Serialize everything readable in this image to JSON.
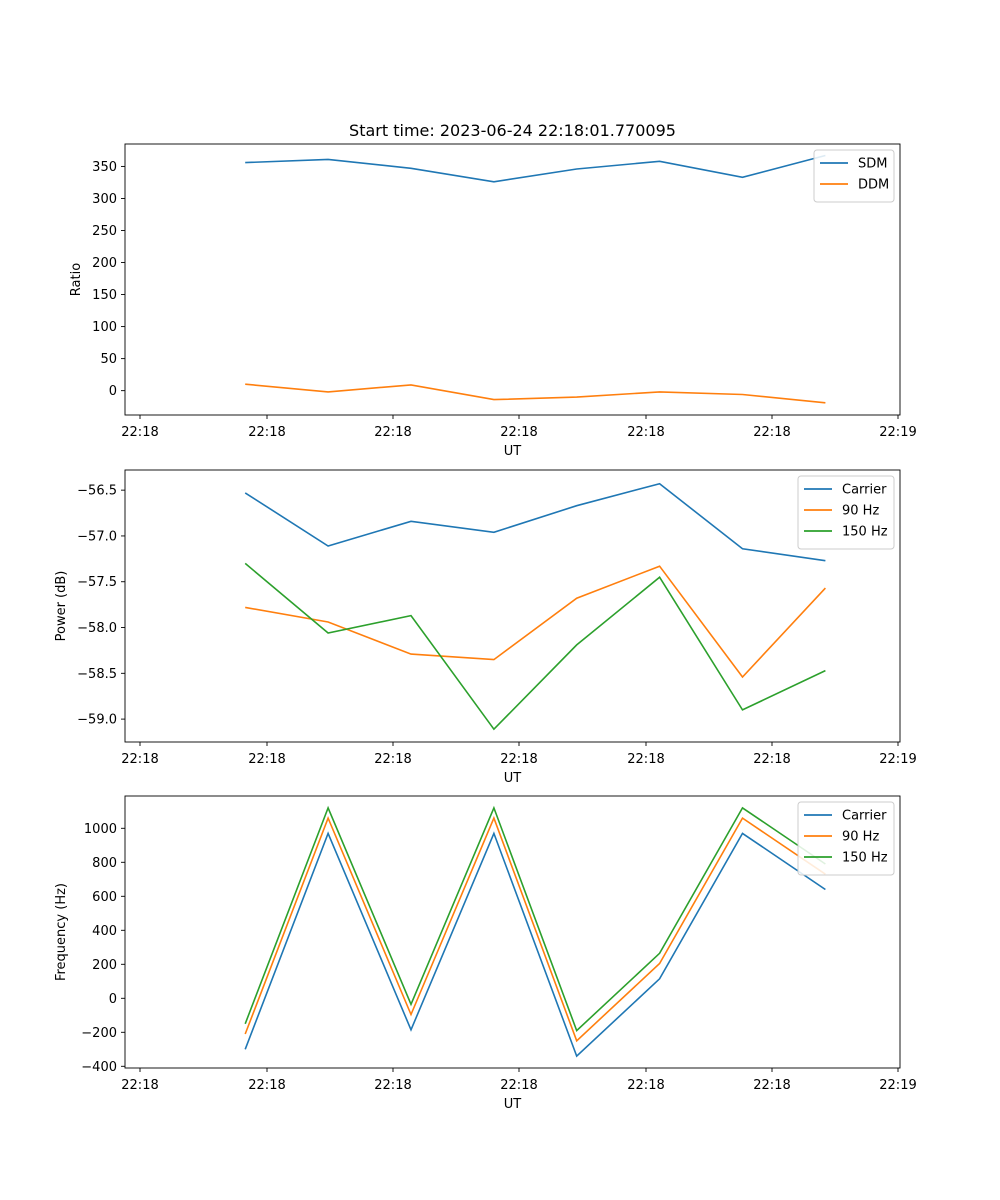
{
  "figure": {
    "title": "Start time: 2023-06-24 22:18:01.770095"
  },
  "chart_data": [
    {
      "type": "line",
      "xlabel": "UT",
      "ylabel": "Ratio",
      "x_tick_labels": [
        "22:18",
        "22:18",
        "22:18",
        "22:18",
        "22:18",
        "22:18",
        "22:19"
      ],
      "y_ticks": [
        0,
        50,
        100,
        150,
        200,
        250,
        300,
        350
      ],
      "ylim": [
        -38,
        385
      ],
      "xlim": [
        -0.65,
        8.7
      ],
      "legend": "top-right",
      "grid": false,
      "x": [
        0.8,
        1.8,
        2.8,
        3.8,
        4.8,
        5.8,
        6.8,
        7.8
      ],
      "series": [
        {
          "name": "SDM",
          "color": "#1f77b4",
          "values": [
            356,
            361,
            347,
            326,
            346,
            358,
            333,
            367
          ]
        },
        {
          "name": "DDM",
          "color": "#ff7f0e",
          "values": [
            10,
            -2,
            9,
            -14,
            -10,
            -2,
            -6,
            -19
          ]
        }
      ]
    },
    {
      "type": "line",
      "xlabel": "UT",
      "ylabel": "Power (dB)",
      "x_tick_labels": [
        "22:18",
        "22:18",
        "22:18",
        "22:18",
        "22:18",
        "22:18",
        "22:19"
      ],
      "y_ticks": [
        -56.5,
        -57.0,
        -57.5,
        -58.0,
        -58.5,
        -59.0
      ],
      "y_tick_labels": [
        "−56.5",
        "−57.0",
        "−57.5",
        "−58.0",
        "−58.5",
        "−59.0"
      ],
      "ylim": [
        -59.25,
        -56.28
      ],
      "xlim": [
        -0.65,
        8.7
      ],
      "legend": "top-right",
      "grid": false,
      "x": [
        0.8,
        1.8,
        2.8,
        3.8,
        4.8,
        5.8,
        6.8,
        7.8
      ],
      "series": [
        {
          "name": "Carrier",
          "color": "#1f77b4",
          "values": [
            -56.53,
            -57.11,
            -56.84,
            -56.96,
            -56.67,
            -56.43,
            -57.14,
            -57.27
          ]
        },
        {
          "name": "90 Hz",
          "color": "#ff7f0e",
          "values": [
            -57.78,
            -57.94,
            -58.29,
            -58.35,
            -57.68,
            -57.33,
            -58.54,
            -57.57
          ]
        },
        {
          "name": "150 Hz",
          "color": "#2ca02c",
          "values": [
            -57.3,
            -58.06,
            -57.87,
            -59.11,
            -58.19,
            -57.45,
            -58.9,
            -58.47
          ]
        }
      ]
    },
    {
      "type": "line",
      "xlabel": "UT",
      "ylabel": "Frequency (Hz)",
      "x_tick_labels": [
        "22:18",
        "22:18",
        "22:18",
        "22:18",
        "22:18",
        "22:18",
        "22:19"
      ],
      "y_ticks": [
        -400,
        -200,
        0,
        200,
        400,
        600,
        800,
        1000
      ],
      "y_tick_labels": [
        "−400",
        "−200",
        "0",
        "200",
        "400",
        "600",
        "800",
        "1000"
      ],
      "ylim": [
        -410,
        1190
      ],
      "xlim": [
        -0.65,
        8.7
      ],
      "legend": "top-right",
      "grid": false,
      "x": [
        0.8,
        1.8,
        2.8,
        3.8,
        4.8,
        5.8,
        6.8,
        7.8
      ],
      "series": [
        {
          "name": "Carrier",
          "color": "#1f77b4",
          "values": [
            -300,
            970,
            -185,
            970,
            -340,
            115,
            970,
            640
          ]
        },
        {
          "name": "90 Hz",
          "color": "#ff7f0e",
          "values": [
            -210,
            1060,
            -95,
            1060,
            -250,
            205,
            1060,
            730
          ]
        },
        {
          "name": "150 Hz",
          "color": "#2ca02c",
          "values": [
            -150,
            1120,
            -35,
            1120,
            -190,
            265,
            1120,
            790
          ]
        }
      ]
    }
  ]
}
